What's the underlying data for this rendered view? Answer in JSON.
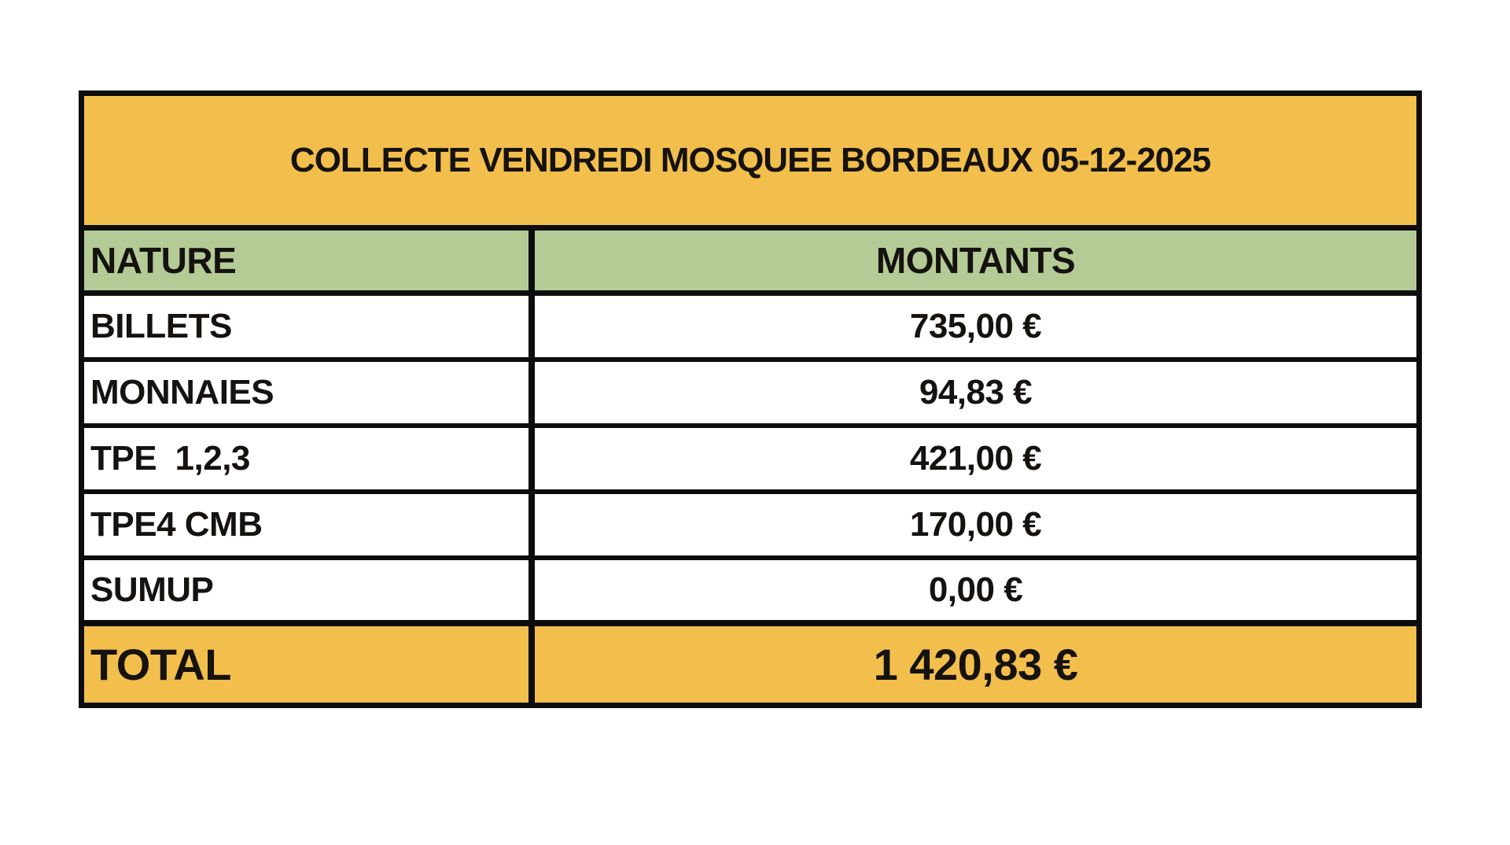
{
  "table": {
    "title": "COLLECTE VENDREDI MOSQUEE BORDEAUX 05-12-2025",
    "header": {
      "nature": "NATURE",
      "montants": "MONTANTS"
    },
    "rows": [
      {
        "nature": "BILLETS",
        "montant": "735,00 €"
      },
      {
        "nature": "MONNAIES",
        "montant": "94,83 €"
      },
      {
        "nature": "TPE  1,2,3",
        "montant": "421,00 €"
      },
      {
        "nature": "TPE4 CMB",
        "montant": "170,00 €"
      },
      {
        "nature": "SUMUP",
        "montant": "0,00 €"
      }
    ],
    "total": {
      "label": "TOTAL",
      "montant": "1 420,83 €"
    },
    "colors": {
      "title_band": "#F2BE4C",
      "header_band": "#B5CB95",
      "total_band": "#F2BE4C",
      "grid": "#0D0D0D",
      "text": "#151210",
      "page_bg": "#FFFFFF"
    }
  }
}
